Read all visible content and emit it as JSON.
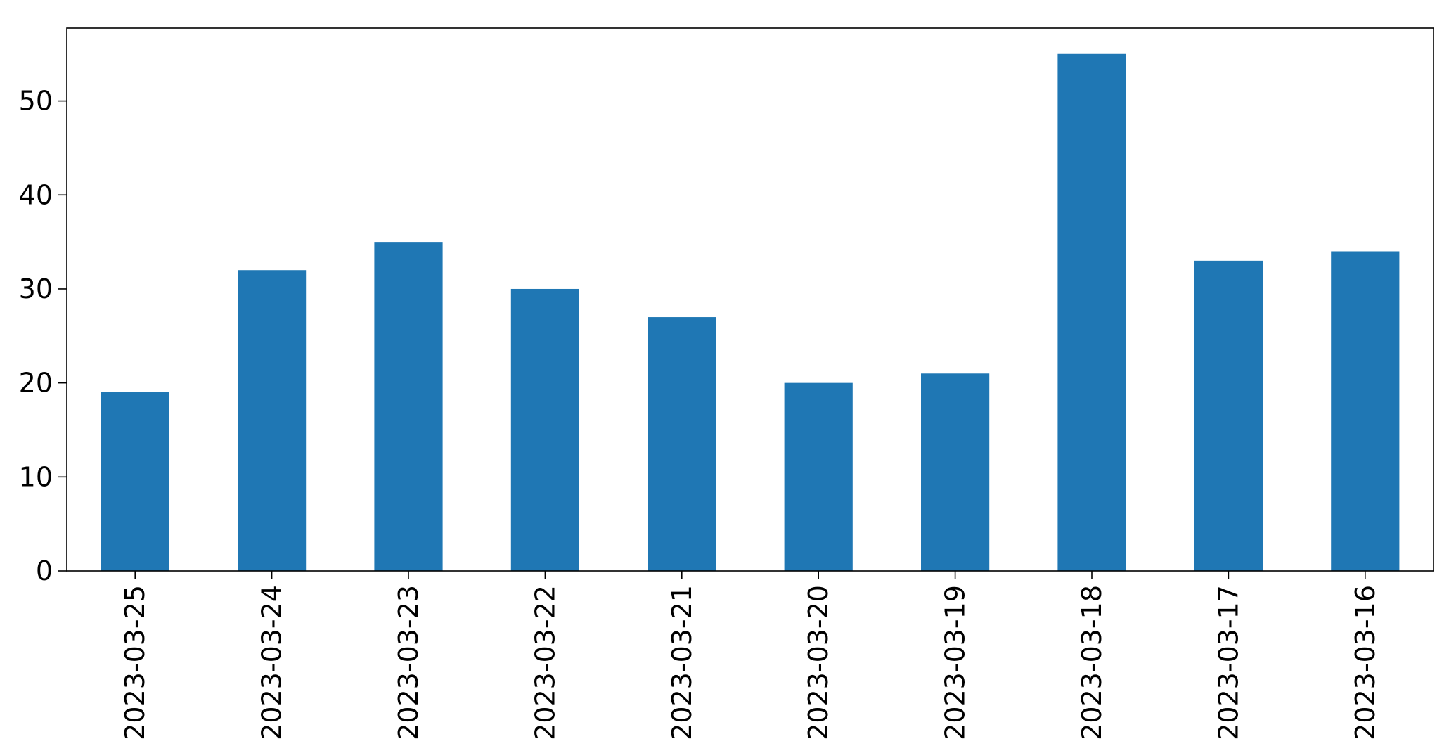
{
  "chart_data": {
    "type": "bar",
    "title": "",
    "xlabel": "",
    "ylabel": "",
    "categories": [
      "2023-03-25",
      "2023-03-24",
      "2023-03-23",
      "2023-03-22",
      "2023-03-21",
      "2023-03-20",
      "2023-03-19",
      "2023-03-18",
      "2023-03-17",
      "2023-03-16"
    ],
    "values": [
      19,
      32,
      35,
      30,
      27,
      20,
      21,
      55,
      33,
      34
    ],
    "ylim": [
      0,
      57.75
    ],
    "yticks": [
      0,
      10,
      20,
      30,
      40,
      50
    ],
    "bar_color": "#1f77b4",
    "grid": false,
    "legend": "none"
  }
}
